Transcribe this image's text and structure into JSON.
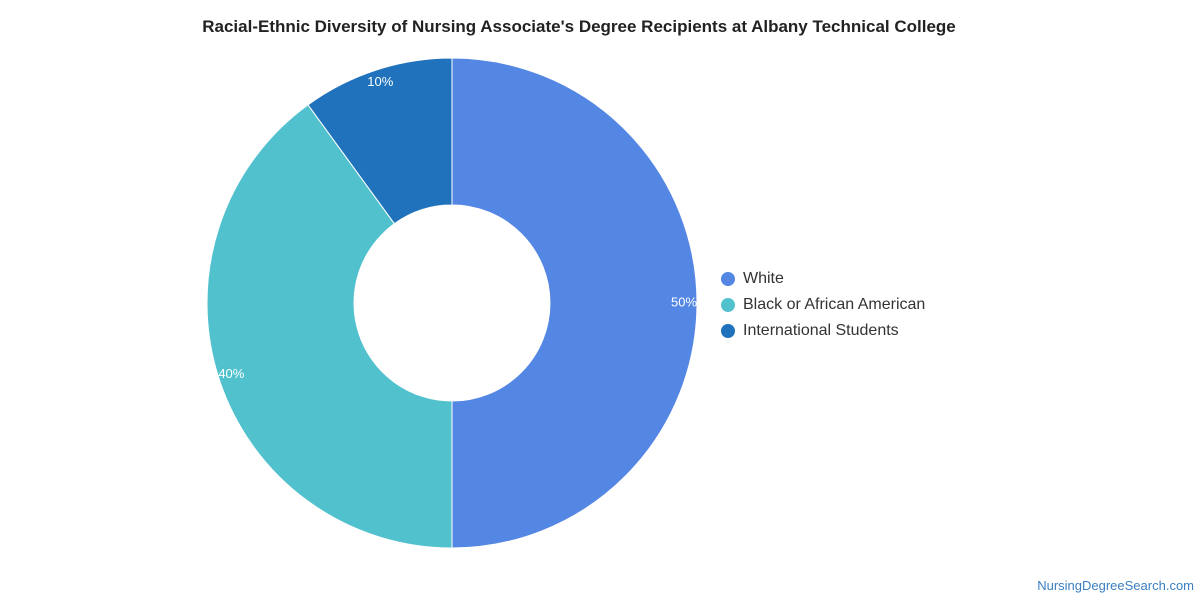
{
  "chart_data": {
    "type": "pie",
    "title": "Racial-Ethnic Diversity of Nursing Associate's Degree Recipients at Albany Technical College",
    "categories": [
      "White",
      "Black or African American",
      "International Students"
    ],
    "values": [
      50,
      40,
      10
    ],
    "data_labels": [
      "50%",
      "40%",
      "10%"
    ],
    "colors": [
      "#5486e3",
      "#51c1ce",
      "#1f72bb"
    ],
    "donut": true,
    "legend_position": "right"
  },
  "footer": {
    "credit": "NursingDegreeSearch.com"
  }
}
